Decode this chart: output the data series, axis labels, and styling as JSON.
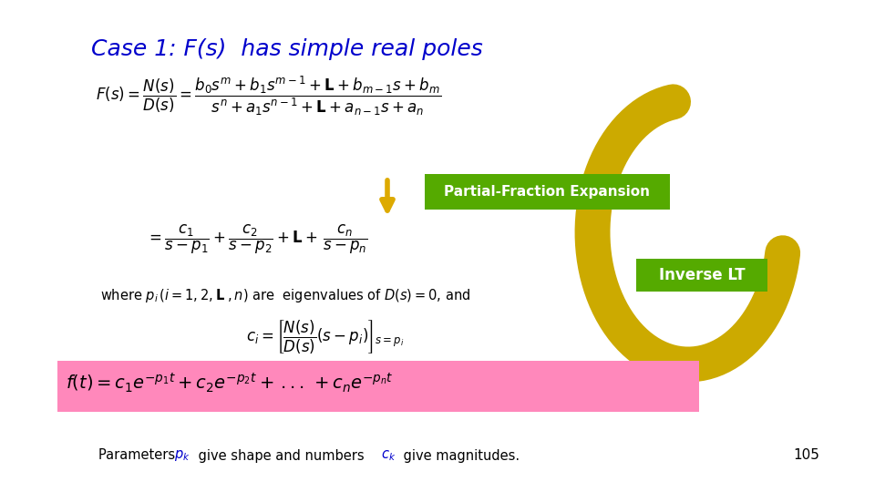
{
  "background_color": "#ffffff",
  "title": "Case 1: F(s)  has simple real poles",
  "title_color": "#0000cc",
  "title_fontsize": 18,
  "page_number": "105",
  "partial_fraction_box_color": "#55aa00",
  "partial_fraction_text": "Partial-Fraction Expansion",
  "inverse_lt_box_color": "#55aa00",
  "inverse_lt_text": "Inverse LT",
  "bottom_formula_bg": "#ff88bb",
  "arrow_color": "#ccaa00",
  "arrow_edge_color": "#aa8800"
}
